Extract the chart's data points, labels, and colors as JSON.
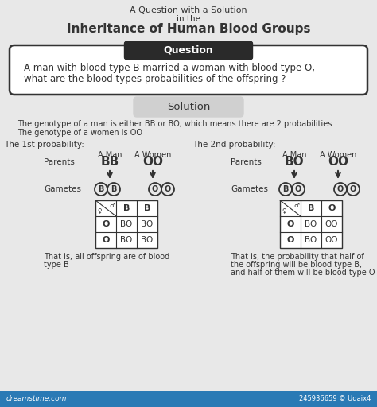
{
  "title_line1": "A Question with a Solution",
  "title_line2": "in the",
  "title_line3": "Inheritance of Human Blood Groups",
  "question_label": "Question",
  "question_text1": "A man with blood type B married a woman with blood type O,",
  "question_text2": "what are the blood types probabilities of the offspring ?",
  "solution_label": "Solution",
  "solution_text1": "The genotype of a man is either BB or BO, which means there are 2 probabilities",
  "solution_text2": "The genotype of a women is OO",
  "prob1_label": "The 1st probability:-",
  "prob2_label": "The 2nd probability:-",
  "prob1_man_label": "A Man",
  "prob1_woman_label": "A Women",
  "prob1_man_genotype": "BB",
  "prob1_woman_genotype": "OO",
  "prob1_parents_label": "Parents",
  "prob1_gametes_label": "Gametes",
  "prob1_gametes_man": [
    "B",
    "B"
  ],
  "prob1_gametes_woman": [
    "O",
    "O"
  ],
  "prob1_punnett_header_col": [
    "B",
    "B"
  ],
  "prob1_punnett_header_row": [
    "O",
    "O"
  ],
  "prob1_punnett_cells": [
    [
      "BO",
      "BO"
    ],
    [
      "BO",
      "BO"
    ]
  ],
  "prob1_conclusion1": "That is, all offspring are of blood",
  "prob1_conclusion2": "type B",
  "prob2_man_label": "A Man",
  "prob2_woman_label": "A Women",
  "prob2_man_genotype": "BO",
  "prob2_woman_genotype": "OO",
  "prob2_parents_label": "Parents",
  "prob2_gametes_label": "Gametes",
  "prob2_gametes_man": [
    "B",
    "O"
  ],
  "prob2_gametes_woman": [
    "O",
    "O"
  ],
  "prob2_punnett_header_col": [
    "B",
    "O"
  ],
  "prob2_punnett_header_row": [
    "O",
    "O"
  ],
  "prob2_punnett_cells": [
    [
      "BO",
      "OO"
    ],
    [
      "BO",
      "OO"
    ]
  ],
  "prob2_conclusion1": "That is, the probability that half of",
  "prob2_conclusion2": "the offspring will be blood type B,",
  "prob2_conclusion3": "and half of them will be blood type O",
  "bg_color": "#e8e8e8",
  "white": "#ffffff",
  "dark": "#333333",
  "question_bg": "#2a2a2a",
  "solution_bg": "#d0d0d0",
  "footer_bg": "#2a7ab5",
  "watermark": "245936659 © Udaix4"
}
